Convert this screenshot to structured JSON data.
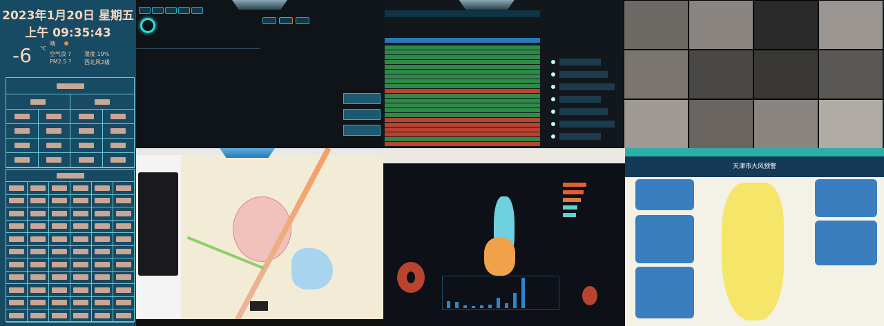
{
  "clock": {
    "date": "2023年1月20日 星期五",
    "time": "上午 09:35:43"
  },
  "weather": {
    "temperature": "-6",
    "unit": "℃",
    "sky": "晴",
    "air": "空气良 ?",
    "humidity": "湿度 19%",
    "pm25": "PM2.5 ?",
    "wind": "西北风2级"
  },
  "warning_panel": {
    "title": "天津市大风预警"
  },
  "colors": {
    "left_panel": "#174a63",
    "table_ok": "#2f8a4a",
    "table_alert": "#b9432f",
    "map_yellow": "#f5e66a",
    "map_orange": "#f0a24a",
    "map_cyan": "#6fd0e0"
  },
  "dashboard_chart": {
    "type": "bar",
    "values": [
      14,
      12,
      6,
      4,
      5,
      7,
      20,
      9,
      30,
      60
    ]
  }
}
